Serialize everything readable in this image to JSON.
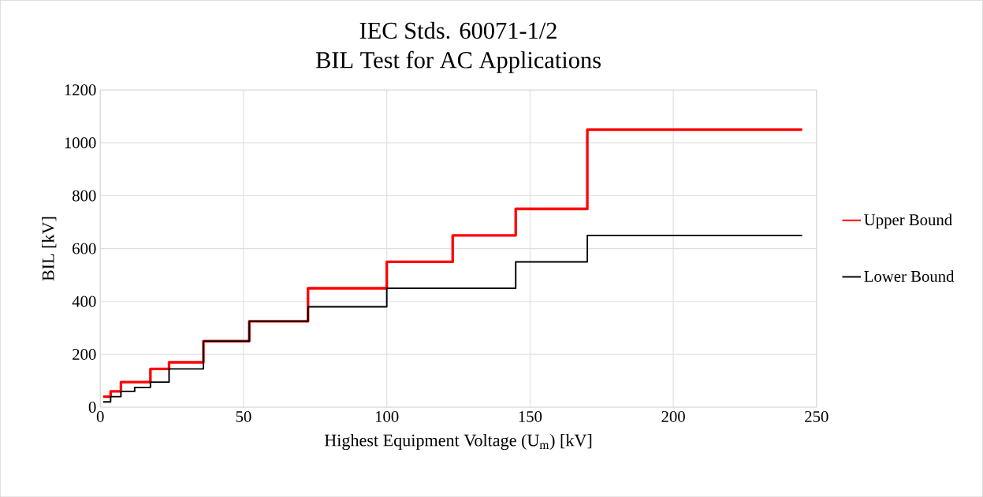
{
  "chart_data": {
    "type": "step",
    "title": "IEC Stds. 60071-1/2\nBIL Test for AC Applications",
    "xlabel": "Highest Equipment Voltage (U$_{m}$) [kV]",
    "ylabel": "BIL [kV]",
    "series": [
      {
        "name": "Upper Bound",
        "color": "#ff0000",
        "x": [
          1,
          3.6,
          7.2,
          17.5,
          24,
          36,
          52,
          72.5,
          100,
          123,
          145,
          170,
          245
        ],
        "values": [
          40,
          60,
          95,
          145,
          170,
          250,
          325,
          450,
          550,
          650,
          750,
          1050,
          1050
        ]
      },
      {
        "name": "Lower Bound",
        "color": "#000000",
        "x": [
          1,
          3.6,
          7.2,
          12,
          17.5,
          24,
          36,
          52,
          72.5,
          100,
          145,
          170,
          245
        ],
        "values": [
          20,
          40,
          60,
          75,
          95,
          145,
          250,
          325,
          380,
          450,
          550,
          650,
          650
        ]
      }
    ],
    "xlim": [
      0,
      250
    ],
    "ylim": [
      0,
      1200
    ],
    "xticks": [
      0,
      50,
      100,
      150,
      200,
      250
    ],
    "yticks": [
      0,
      200,
      400,
      600,
      800,
      1000,
      1200
    ],
    "grid": true,
    "legend": "right",
    "marker": "none",
    "line_style": "solid"
  }
}
